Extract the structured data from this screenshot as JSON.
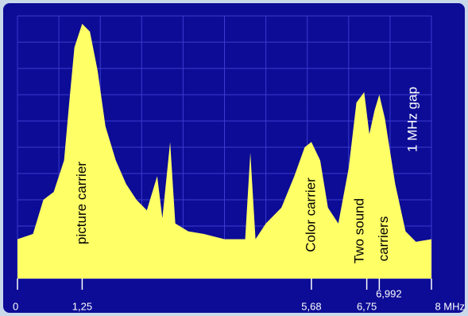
{
  "chart_data": {
    "type": "area",
    "x": [
      0,
      0.3,
      0.5,
      0.7,
      0.9,
      1.0,
      1.1,
      1.25,
      1.4,
      1.55,
      1.7,
      1.9,
      2.1,
      2.3,
      2.5,
      2.7,
      2.8,
      2.95,
      3.05,
      3.3,
      3.6,
      4.0,
      4.4,
      4.5,
      4.6,
      4.8,
      5.1,
      5.35,
      5.55,
      5.68,
      5.85,
      6.0,
      6.2,
      6.4,
      6.55,
      6.7,
      6.8,
      6.9,
      6.992,
      7.1,
      7.3,
      7.5,
      7.7,
      8.0
    ],
    "values": [
      1.5,
      1.7,
      3.0,
      3.3,
      4.5,
      6.7,
      8.8,
      9.7,
      9.4,
      7.9,
      5.8,
      4.5,
      3.6,
      3.0,
      2.6,
      3.9,
      2.3,
      5.2,
      2.1,
      1.8,
      1.7,
      1.5,
      1.5,
      4.8,
      1.5,
      2.1,
      2.7,
      3.9,
      5.0,
      5.2,
      4.5,
      2.7,
      2.1,
      4.2,
      6.7,
      7.1,
      5.5,
      6.4,
      7.0,
      6.1,
      3.6,
      1.8,
      1.4,
      1.5
    ],
    "color": "#ffff66",
    "xlim": [
      0,
      8
    ],
    "ylim": [
      0,
      10
    ],
    "xticks": [
      0,
      {
        "value": 1.25,
        "label": "1,25"
      },
      {
        "value": 5.68,
        "label": "5,68"
      },
      {
        "value": 6.75,
        "label": "6,75"
      },
      {
        "value": 6.992,
        "label": "6,992"
      },
      {
        "value": 8,
        "label": "8 MHz"
      }
    ],
    "yticks": [
      0,
      1,
      2,
      3,
      4,
      5,
      6,
      7,
      8,
      9,
      10
    ],
    "grid": true,
    "annotations": [
      "picture carrier",
      "Color carrier",
      "Two sound",
      "carriers",
      "1 MHz gap"
    ]
  }
}
